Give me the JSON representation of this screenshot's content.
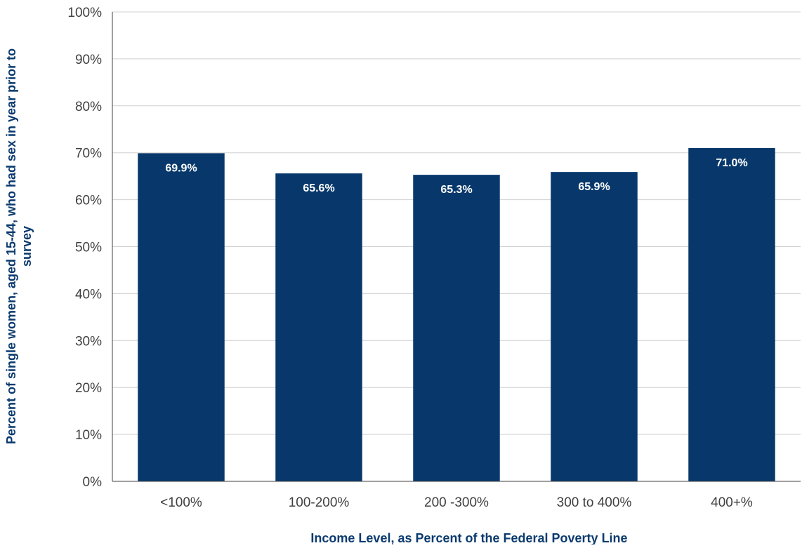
{
  "chart_data": {
    "type": "bar",
    "categories": [
      "<100%",
      "100-200%",
      "200 -300%",
      "300 to 400%",
      "400+%"
    ],
    "values": [
      69.9,
      65.6,
      65.3,
      65.9,
      71.0
    ],
    "data_labels": [
      "69.9%",
      "65.6%",
      "65.3%",
      "65.9%",
      "71.0%"
    ],
    "xlabel": "Income Level, as Percent of the Federal Poverty Line",
    "ylabel_lines": [
      "Percent of single women, aged 15-44, who had sex in year prior to",
      "survey"
    ],
    "ylim": [
      0,
      100
    ],
    "yticks": [
      "0%",
      "10%",
      "20%",
      "30%",
      "40%",
      "50%",
      "60%",
      "70%",
      "80%",
      "90%",
      "100%"
    ],
    "grid": true,
    "bar_color": "#08386b",
    "grid_color": "#d0d0d0"
  }
}
